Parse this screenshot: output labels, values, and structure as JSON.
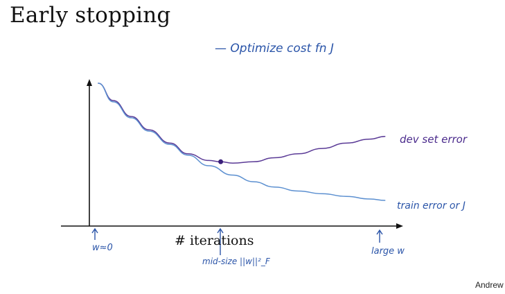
{
  "slide": {
    "title": "Early stopping",
    "credit": "Andrew Ng"
  },
  "notes": {
    "top": "— Optimize cost fn J",
    "w0": "w≈0",
    "mid": "mid-size ||w||²_F",
    "large": "large w"
  },
  "chart_data": {
    "type": "line",
    "title": "Early stopping",
    "xlabel": "# iterations",
    "ylabel": "",
    "grid": false,
    "legend": "inline-right",
    "xlim": [
      0,
      1
    ],
    "ylim": [
      0,
      1
    ],
    "series": [
      {
        "name": "dev set error",
        "color": "#5a3a96",
        "x": [
          0.03,
          0.08,
          0.14,
          0.2,
          0.27,
          0.33,
          0.4,
          0.44,
          0.48,
          0.55,
          0.62,
          0.7,
          0.78,
          0.86,
          0.94,
          0.99
        ],
        "y": [
          1.0,
          0.87,
          0.75,
          0.65,
          0.55,
          0.47,
          0.42,
          0.41,
          0.4,
          0.41,
          0.44,
          0.47,
          0.51,
          0.55,
          0.58,
          0.6
        ]
      },
      {
        "name": "train error or J",
        "color": "#5b8fd0",
        "x": [
          0.03,
          0.08,
          0.14,
          0.2,
          0.27,
          0.33,
          0.4,
          0.48,
          0.55,
          0.62,
          0.7,
          0.78,
          0.86,
          0.94,
          0.99
        ],
        "y": [
          1.0,
          0.86,
          0.74,
          0.64,
          0.54,
          0.46,
          0.38,
          0.31,
          0.26,
          0.22,
          0.19,
          0.17,
          0.15,
          0.13,
          0.12
        ]
      }
    ],
    "markers": [
      {
        "series": "dev set error",
        "x": 0.44,
        "y": 0.41
      }
    ]
  }
}
